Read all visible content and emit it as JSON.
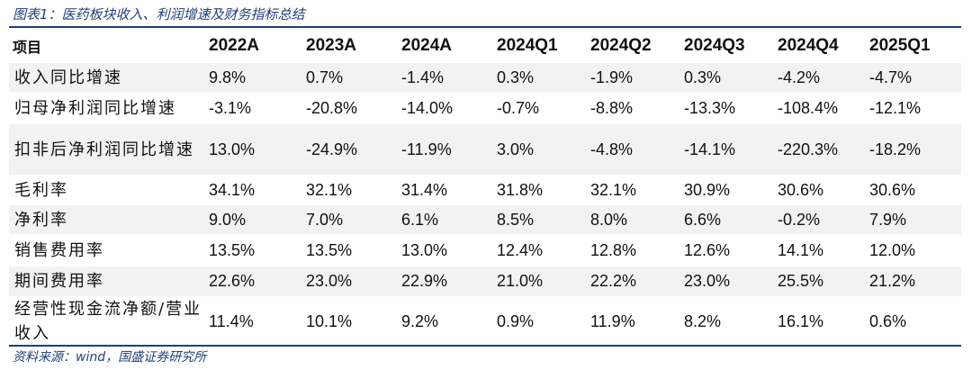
{
  "caption": "图表1：医药板块收入、利润增速及财务指标总结",
  "table": {
    "headers": [
      "项目",
      "2022A",
      "2023A",
      "2024A",
      "2024Q1",
      "2024Q2",
      "2024Q3",
      "2024Q4",
      "2025Q1"
    ],
    "rows": [
      {
        "label": "收入同比增速",
        "values": [
          "9.8%",
          "0.7%",
          "-1.4%",
          "0.3%",
          "-1.9%",
          "0.3%",
          "-4.2%",
          "-4.7%"
        ]
      },
      {
        "label": "归母净利润同比增速",
        "values": [
          "-3.1%",
          "-20.8%",
          "-14.0%",
          "-0.7%",
          "-8.8%",
          "-13.3%",
          "-108.4%",
          "-12.1%"
        ]
      },
      {
        "label": "扣非后净利润同比增速",
        "values": [
          "13.0%",
          "-24.9%",
          "-11.9%",
          "3.0%",
          "-4.8%",
          "-14.1%",
          "-220.3%",
          "-18.2%"
        ]
      },
      {
        "label": "毛利率",
        "values": [
          "34.1%",
          "32.1%",
          "31.4%",
          "31.8%",
          "32.1%",
          "30.9%",
          "30.6%",
          "30.6%"
        ]
      },
      {
        "label": "净利率",
        "values": [
          "9.0%",
          "7.0%",
          "6.1%",
          "8.5%",
          "8.0%",
          "6.6%",
          "-0.2%",
          "7.9%"
        ]
      },
      {
        "label": "销售费用率",
        "values": [
          "13.5%",
          "13.5%",
          "13.0%",
          "12.4%",
          "12.8%",
          "12.6%",
          "14.1%",
          "12.0%"
        ]
      },
      {
        "label": "期间费用率",
        "values": [
          "22.6%",
          "23.0%",
          "22.9%",
          "21.0%",
          "22.2%",
          "23.0%",
          "25.5%",
          "21.2%"
        ]
      },
      {
        "label": "经营性现金流净额/营业收入",
        "values": [
          "11.4%",
          "10.1%",
          "9.2%",
          "0.9%",
          "11.9%",
          "8.2%",
          "16.1%",
          "0.6%"
        ]
      }
    ]
  },
  "source": "资料来源：wind，国盛证券研究所",
  "colors": {
    "accent": "#1f3f7a",
    "row_shade": "#f2f2f2"
  }
}
